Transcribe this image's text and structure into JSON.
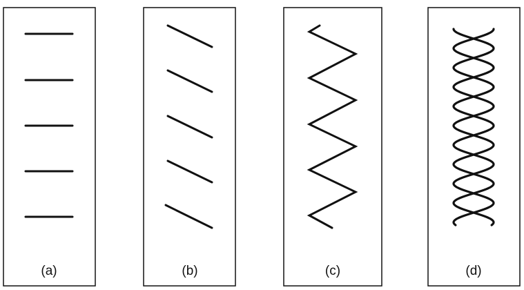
{
  "panels": [
    {
      "id": "a",
      "caption": "(a)"
    },
    {
      "id": "b",
      "caption": "(b)"
    },
    {
      "id": "c",
      "caption": "(c)"
    },
    {
      "id": "d",
      "caption": "(d)"
    }
  ],
  "colors": {
    "ink": "#111111",
    "background": "#ffffff"
  }
}
